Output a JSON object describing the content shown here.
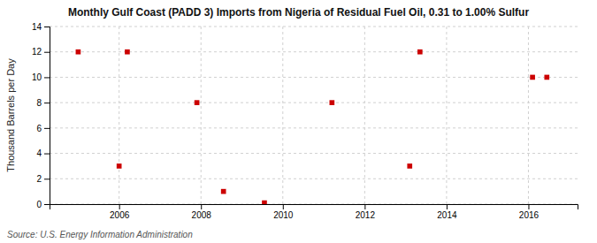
{
  "chart_data": {
    "type": "scatter",
    "title": "Monthly Gulf Coast (PADD 3) Imports from Nigeria of Residual Fuel Oil, 0.31 to 1.00% Sulfur",
    "ylabel": "Thousand Barrels per Day",
    "source": "Source: U.S. Energy Information Administration",
    "x": [
      2005.0,
      2006.0,
      2006.2,
      2007.9,
      2008.55,
      2009.55,
      2011.2,
      2013.1,
      2013.35,
      2016.1,
      2016.45
    ],
    "values": [
      12,
      3,
      12,
      8,
      1,
      0.1,
      8,
      3,
      12,
      10,
      10
    ],
    "color": "#cc0000",
    "marker": "square",
    "xlim": [
      2004.3,
      2017.2
    ],
    "xticks": [
      2006,
      2008,
      2010,
      2012,
      2014,
      2016
    ],
    "ylim": [
      0,
      14
    ],
    "yticks": [
      0,
      2,
      4,
      6,
      8,
      10,
      12,
      14
    ],
    "grid": true
  }
}
